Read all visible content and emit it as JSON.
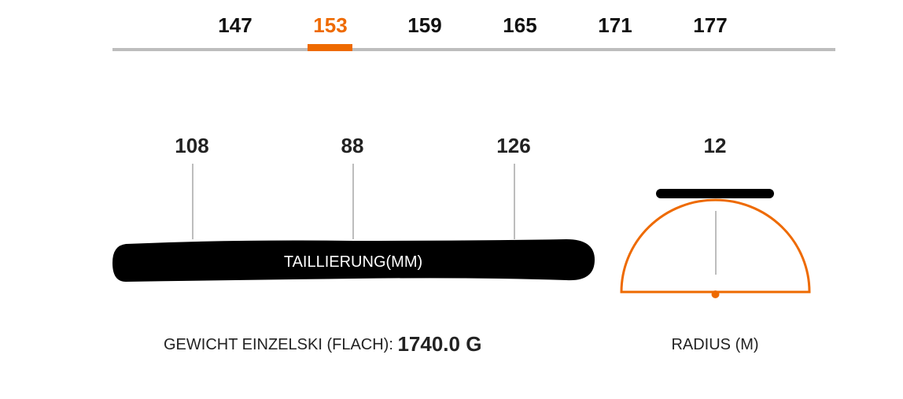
{
  "sizes": {
    "items": [
      "147",
      "153",
      "159",
      "165",
      "171",
      "177"
    ],
    "selected": "153"
  },
  "sidecut": {
    "tip": "108",
    "waist": "88",
    "tail": "126",
    "label": "TAILLIERUNG(MM)"
  },
  "radius": {
    "value": "12",
    "label": "RADIUS (M)"
  },
  "weight": {
    "label": "GEWICHT EINZELSKI (FLACH):",
    "value": "1740.0 G"
  },
  "colors": {
    "accent": "#ee6a00",
    "ski": "#000000",
    "line": "#bdbdbd"
  }
}
